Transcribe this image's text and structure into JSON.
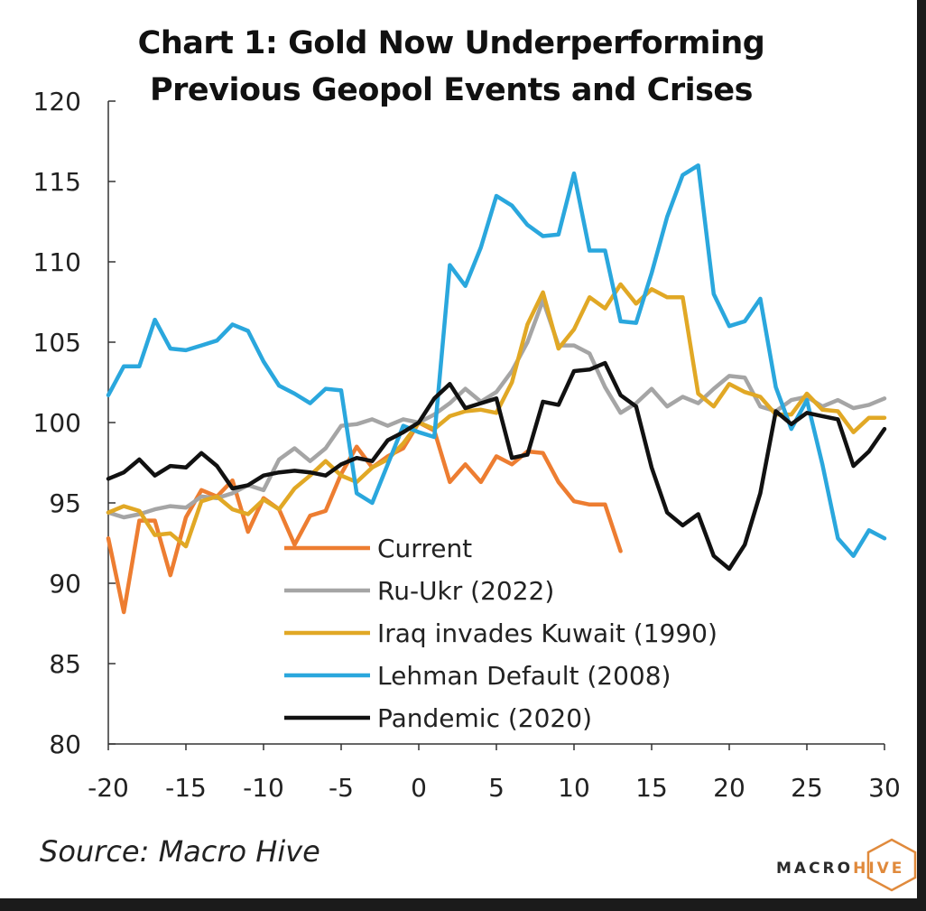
{
  "chart_data": {
    "type": "line",
    "title_lines": [
      "Chart 1: Gold Now Underperforming",
      "Previous Geopol Events and Crises"
    ],
    "xlim": [
      -20,
      30
    ],
    "ylim": [
      80,
      120
    ],
    "xticks": [
      -20,
      -15,
      -10,
      -5,
      0,
      5,
      10,
      15,
      20,
      25,
      30
    ],
    "yticks": [
      80,
      85,
      90,
      95,
      100,
      105,
      110,
      115,
      120
    ],
    "grid": false,
    "legend_position": "lower-left-center",
    "series": [
      {
        "name": "Current",
        "color": "#ed7d31",
        "x": [
          -20,
          -19,
          -18,
          -17,
          -16,
          -15,
          -14,
          -13,
          -12,
          -11,
          -10,
          -9,
          -8,
          -7,
          -6,
          -5,
          -4,
          -3,
          -2,
          -1,
          0,
          1,
          2,
          3,
          4,
          5,
          6,
          7,
          8,
          9,
          10,
          11,
          12,
          13
        ],
        "y": [
          92.8,
          88.2,
          93.9,
          93.9,
          90.5,
          94.1,
          95.8,
          95.4,
          96.4,
          93.2,
          95.3,
          94.6,
          92.4,
          94.2,
          94.5,
          96.8,
          98.5,
          97.2,
          97.9,
          98.4,
          100.0,
          99.5,
          96.3,
          97.4,
          96.3,
          97.9,
          97.4,
          98.2,
          98.1,
          96.3,
          95.1,
          94.9,
          94.9,
          92.0
        ]
      },
      {
        "name": "Ru-Ukr (2022)",
        "color": "#a5a5a5",
        "x": [
          -20,
          -19,
          -18,
          -17,
          -16,
          -15,
          -14,
          -13,
          -12,
          -11,
          -10,
          -9,
          -8,
          -7,
          -6,
          -5,
          -4,
          -3,
          -2,
          -1,
          0,
          1,
          2,
          3,
          4,
          5,
          6,
          7,
          8,
          9,
          10,
          11,
          12,
          13,
          14,
          15,
          16,
          17,
          18,
          19,
          20,
          21,
          22,
          23,
          24,
          25,
          26,
          27,
          28,
          29,
          30
        ],
        "y": [
          94.4,
          94.1,
          94.3,
          94.6,
          94.8,
          94.7,
          95.4,
          95.3,
          95.6,
          96.1,
          95.8,
          97.7,
          98.4,
          97.6,
          98.4,
          99.8,
          99.9,
          100.2,
          99.8,
          100.2,
          100.0,
          100.5,
          101.2,
          102.1,
          101.3,
          101.9,
          103.2,
          105.0,
          107.6,
          104.8,
          104.8,
          104.3,
          102.2,
          100.6,
          101.2,
          102.1,
          101.0,
          101.6,
          101.2,
          102.1,
          102.9,
          102.8,
          101.0,
          100.7,
          101.4,
          101.6,
          101.0,
          101.4,
          100.9,
          101.1,
          101.5
        ]
      },
      {
        "name": "Iraq invades Kuwait (1990)",
        "color": "#e1a825",
        "x": [
          -20,
          -19,
          -18,
          -17,
          -16,
          -15,
          -14,
          -13,
          -12,
          -11,
          -10,
          -9,
          -8,
          -7,
          -6,
          -5,
          -4,
          -3,
          -2,
          -1,
          0,
          1,
          2,
          3,
          4,
          5,
          6,
          7,
          8,
          9,
          10,
          11,
          12,
          13,
          14,
          15,
          16,
          17,
          18,
          19,
          20,
          21,
          22,
          23,
          24,
          25,
          26,
          27,
          28,
          29,
          30
        ],
        "y": [
          94.4,
          94.8,
          94.5,
          93.0,
          93.1,
          92.3,
          95.1,
          95.4,
          94.6,
          94.3,
          95.2,
          94.6,
          95.9,
          96.7,
          97.6,
          96.7,
          96.3,
          97.2,
          97.7,
          98.7,
          100.0,
          99.6,
          100.4,
          100.7,
          100.8,
          100.6,
          102.5,
          106.1,
          108.1,
          104.6,
          105.8,
          107.8,
          107.1,
          108.6,
          107.4,
          108.3,
          107.8,
          107.8,
          101.8,
          101.0,
          102.4,
          101.9,
          101.6,
          100.5,
          100.5,
          101.8,
          100.8,
          100.7,
          99.4,
          100.3,
          100.3
        ]
      },
      {
        "name": "Lehman Default (2008)",
        "color": "#2aa7dd",
        "x": [
          -20,
          -19,
          -18,
          -17,
          -16,
          -15,
          -14,
          -13,
          -12,
          -11,
          -10,
          -9,
          -8,
          -7,
          -6,
          -5,
          -4,
          -3,
          -2,
          -1,
          0,
          1,
          2,
          3,
          4,
          5,
          6,
          7,
          8,
          9,
          10,
          11,
          12,
          13,
          14,
          15,
          16,
          17,
          18,
          19,
          20,
          21,
          22,
          23,
          24,
          25,
          26,
          27,
          28,
          29,
          30
        ],
        "y": [
          101.7,
          103.5,
          103.5,
          106.4,
          104.6,
          104.5,
          104.8,
          105.1,
          106.1,
          105.7,
          103.8,
          102.3,
          101.8,
          101.2,
          102.1,
          102.0,
          95.6,
          95.0,
          97.4,
          99.8,
          99.4,
          99.1,
          109.8,
          108.5,
          110.9,
          114.1,
          113.5,
          112.3,
          111.6,
          111.7,
          115.5,
          110.7,
          110.7,
          106.3,
          106.2,
          109.3,
          112.8,
          115.4,
          116.0,
          108.0,
          106.0,
          106.3,
          107.7,
          102.2,
          99.6,
          101.4,
          97.4,
          92.8,
          91.7,
          93.3,
          92.8
        ]
      },
      {
        "name": "Pandemic (2020)",
        "color": "#111111",
        "x": [
          -20,
          -19,
          -18,
          -17,
          -16,
          -15,
          -14,
          -13,
          -12,
          -11,
          -10,
          -9,
          -8,
          -7,
          -6,
          -5,
          -4,
          -3,
          -2,
          -1,
          0,
          1,
          2,
          3,
          4,
          5,
          6,
          7,
          8,
          9,
          10,
          11,
          12,
          13,
          14,
          15,
          16,
          17,
          18,
          19,
          20,
          21,
          22,
          23,
          24,
          25,
          26,
          27,
          28,
          29,
          30
        ],
        "y": [
          96.5,
          96.9,
          97.7,
          96.7,
          97.3,
          97.2,
          98.1,
          97.3,
          95.9,
          96.1,
          96.7,
          96.9,
          97.0,
          96.9,
          96.7,
          97.4,
          97.8,
          97.6,
          98.9,
          99.4,
          100.0,
          101.5,
          102.4,
          100.9,
          101.2,
          101.5,
          97.8,
          98.0,
          101.3,
          101.1,
          103.2,
          103.3,
          103.7,
          101.7,
          101.0,
          97.2,
          94.4,
          93.6,
          94.3,
          91.7,
          90.9,
          92.4,
          95.6,
          100.7,
          99.9,
          100.6,
          100.4,
          100.2,
          97.3,
          98.2,
          99.6
        ]
      }
    ]
  },
  "source": "Source: Macro Hive",
  "logo": {
    "macro": "MACRO",
    "hive": "HIVE"
  }
}
